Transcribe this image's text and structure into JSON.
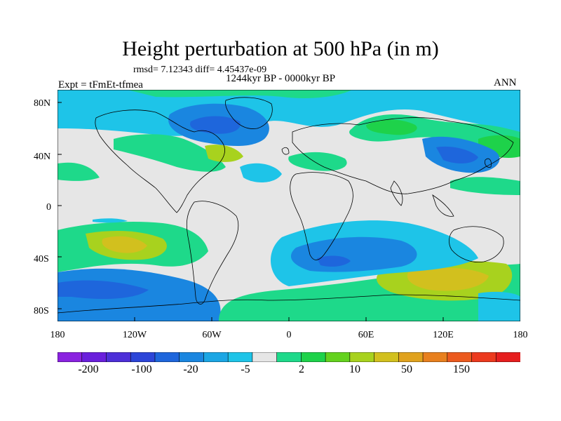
{
  "title": "Height perturbation at 500 hPa (in m)",
  "stats": "rmsd= 7.12343 diff= 4.45437e-09",
  "left_label": "Expt = tFmEt-tfmea",
  "center_label": "1244kyr BP - 0000kyr BP",
  "right_label": "ANN",
  "lat_labels": [
    "80N",
    "40N",
    "0",
    "40S",
    "80S"
  ],
  "lon_labels": [
    "180",
    "120W",
    "60W",
    "0",
    "60E",
    "120E",
    "180"
  ],
  "colorbar": {
    "labels": [
      "-200",
      "-100",
      "-20",
      "-5",
      "2",
      "10",
      "50",
      "150"
    ],
    "colors": [
      "#8a22e0",
      "#6a1fdc",
      "#4d2fd8",
      "#2c45d8",
      "#1e66dc",
      "#1a86e0",
      "#1ba6e4",
      "#1ec4e8",
      "#e6e6e6",
      "#1ed98a",
      "#1ed24a",
      "#64d21e",
      "#a8d21e",
      "#d2c01e",
      "#e0a21e",
      "#e8801e",
      "#ec5a1e",
      "#ec3a1e",
      "#e61e1e"
    ]
  },
  "palette": {
    "land_bg": "#e6e6e6",
    "coast": "#000000"
  }
}
